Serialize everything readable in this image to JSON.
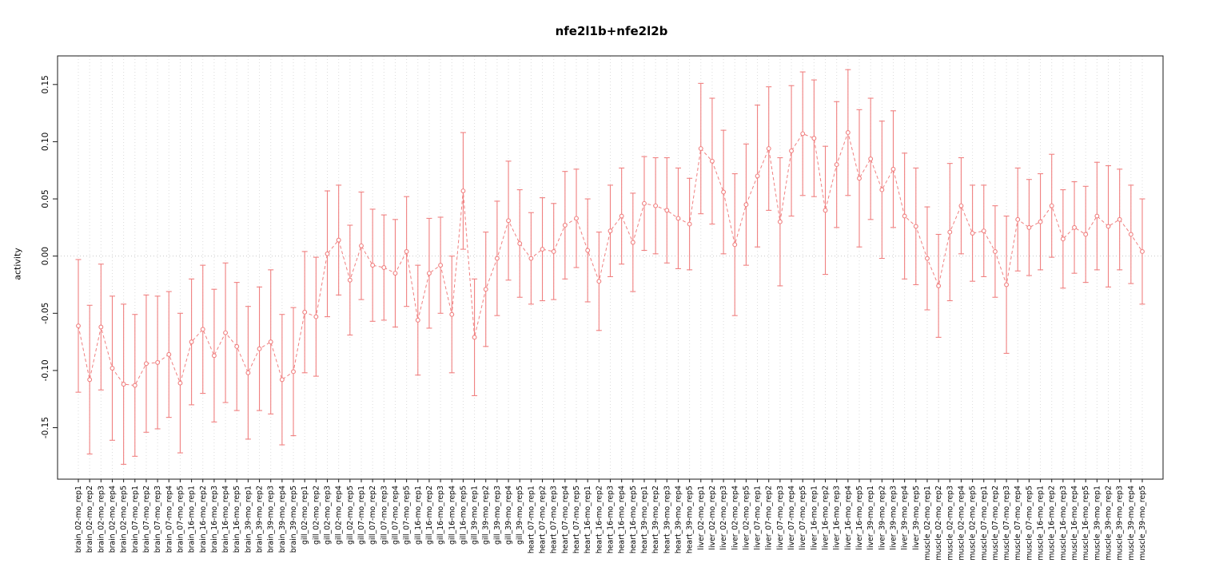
{
  "chart_data": {
    "type": "line",
    "title": "nfe2l1b+nfe2l2b",
    "xlabel": "",
    "ylabel": "activity",
    "ylim": [
      -0.195,
      0.175
    ],
    "yticks": [
      -0.15,
      -0.1,
      -0.05,
      0.0,
      0.05,
      0.1,
      0.15
    ],
    "ytick_labels": [
      "-0.15",
      "-0.10",
      "-0.05",
      "0.00",
      "0.05",
      "0.10",
      "0.15"
    ],
    "grid": "vertical-dotted-per-category, dotted-zero-line",
    "legend": "none",
    "marker": "open-circle",
    "line_style": "dashed",
    "error_bars": true,
    "colors": {
      "series": "#f08080",
      "grid": "#dcdcdc",
      "zero_line": "#c8c8c8",
      "frame": "#1a1a1a",
      "text": "#000000"
    },
    "categories": [
      "brain_02-mo_rep1",
      "brain_02-mo_rep2",
      "brain_02-mo_rep3",
      "brain_02-mo_rep4",
      "brain_02-mo_rep5",
      "brain_07-mo_rep1",
      "brain_07-mo_rep2",
      "brain_07-mo_rep3",
      "brain_07-mo_rep4",
      "brain_07-mo_rep5",
      "brain_16-mo_rep1",
      "brain_16-mo_rep2",
      "brain_16-mo_rep3",
      "brain_16-mo_rep4",
      "brain_16-mo_rep5",
      "brain_39-mo_rep1",
      "brain_39-mo_rep2",
      "brain_39-mo_rep3",
      "brain_39-mo_rep4",
      "brain_39-mo_rep5",
      "gill_02-mo_rep1",
      "gill_02-mo_rep2",
      "gill_02-mo_rep3",
      "gill_02-mo_rep4",
      "gill_02-mo_rep5",
      "gill_07-mo_rep1",
      "gill_07-mo_rep2",
      "gill_07-mo_rep3",
      "gill_07-mo_rep4",
      "gill_07-mo_rep5",
      "gill_16-mo_rep1",
      "gill_16-mo_rep2",
      "gill_16-mo_rep3",
      "gill_16-mo_rep4",
      "gill_16-mo_rep5",
      "gill_39-mo_rep1",
      "gill_39-mo_rep2",
      "gill_39-mo_rep3",
      "gill_39-mo_rep4",
      "gill_39-mo_rep5",
      "heart_07-mo_rep1",
      "heart_07-mo_rep2",
      "heart_07-mo_rep3",
      "heart_07-mo_rep4",
      "heart_07-mo_rep5",
      "heart_16-mo_rep1",
      "heart_16-mo_rep2",
      "heart_16-mo_rep3",
      "heart_16-mo_rep4",
      "heart_16-mo_rep5",
      "heart_39-mo_rep1",
      "heart_39-mo_rep2",
      "heart_39-mo_rep3",
      "heart_39-mo_rep4",
      "heart_39-mo_rep5",
      "liver_02-mo_rep1",
      "liver_02-mo_rep2",
      "liver_02-mo_rep3",
      "liver_02-mo_rep4",
      "liver_02-mo_rep5",
      "liver_07-mo_rep1",
      "liver_07-mo_rep2",
      "liver_07-mo_rep3",
      "liver_07-mo_rep4",
      "liver_07-mo_rep5",
      "liver_16-mo_rep1",
      "liver_16-mo_rep2",
      "liver_16-mo_rep3",
      "liver_16-mo_rep4",
      "liver_16-mo_rep5",
      "liver_39-mo_rep1",
      "liver_39-mo_rep2",
      "liver_39-mo_rep3",
      "liver_39-mo_rep4",
      "liver_39-mo_rep5",
      "muscle_02-mo_rep1",
      "muscle_02-mo_rep2",
      "muscle_02-mo_rep3",
      "muscle_02-mo_rep4",
      "muscle_02-mo_rep5",
      "muscle_07-mo_rep1",
      "muscle_07-mo_rep2",
      "muscle_07-mo_rep3",
      "muscle_07-mo_rep4",
      "muscle_07-mo_rep5",
      "muscle_16-mo_rep1",
      "muscle_16-mo_rep2",
      "muscle_16-mo_rep3",
      "muscle_16-mo_rep4",
      "muscle_16-mo_rep5",
      "muscle_39-mo_rep1",
      "muscle_39-mo_rep2",
      "muscle_39-mo_rep3",
      "muscle_39-mo_rep4",
      "muscle_39-mo_rep5"
    ],
    "values": [
      -0.061,
      -0.108,
      -0.062,
      -0.098,
      -0.112,
      -0.113,
      -0.094,
      -0.093,
      -0.086,
      -0.111,
      -0.075,
      -0.064,
      -0.087,
      -0.067,
      -0.079,
      -0.102,
      -0.081,
      -0.075,
      -0.108,
      -0.101,
      -0.049,
      -0.053,
      0.002,
      0.014,
      -0.021,
      0.009,
      -0.008,
      -0.01,
      -0.015,
      0.004,
      -0.056,
      -0.015,
      -0.008,
      -0.051,
      0.057,
      -0.071,
      -0.029,
      -0.002,
      0.031,
      0.011,
      -0.002,
      0.006,
      0.004,
      0.027,
      0.033,
      0.005,
      -0.022,
      0.022,
      0.035,
      0.012,
      0.046,
      0.044,
      0.04,
      0.033,
      0.028,
      0.094,
      0.083,
      0.056,
      0.01,
      0.045,
      0.07,
      0.094,
      0.03,
      0.092,
      0.107,
      0.103,
      0.04,
      0.08,
      0.108,
      0.068,
      0.085,
      0.058,
      0.076,
      0.035,
      0.026,
      -0.002,
      -0.026,
      0.021,
      0.044,
      0.02,
      0.022,
      0.004,
      -0.025,
      0.032,
      0.025,
      0.03,
      0.044,
      0.015,
      0.025,
      0.019,
      0.035,
      0.026,
      0.032,
      0.019,
      0.004
    ],
    "errors": [
      0.058,
      0.065,
      0.055,
      0.063,
      0.07,
      0.062,
      0.06,
      0.058,
      0.055,
      0.061,
      0.055,
      0.056,
      0.058,
      0.061,
      0.056,
      0.058,
      0.054,
      0.063,
      0.057,
      0.056,
      0.053,
      0.052,
      0.055,
      0.048,
      0.048,
      0.047,
      0.049,
      0.046,
      0.047,
      0.048,
      0.048,
      0.048,
      0.042,
      0.051,
      0.051,
      0.051,
      0.05,
      0.05,
      0.052,
      0.047,
      0.04,
      0.045,
      0.042,
      0.047,
      0.043,
      0.045,
      0.043,
      0.04,
      0.042,
      0.043,
      0.041,
      0.042,
      0.046,
      0.044,
      0.04,
      0.057,
      0.055,
      0.054,
      0.062,
      0.053,
      0.062,
      0.054,
      0.056,
      0.057,
      0.054,
      0.051,
      0.056,
      0.055,
      0.055,
      0.06,
      0.053,
      0.06,
      0.051,
      0.055,
      0.051,
      0.045,
      0.045,
      0.06,
      0.042,
      0.042,
      0.04,
      0.04,
      0.06,
      0.045,
      0.042,
      0.042,
      0.045,
      0.043,
      0.04,
      0.042,
      0.047,
      0.053,
      0.044,
      0.043,
      0.046
    ]
  }
}
